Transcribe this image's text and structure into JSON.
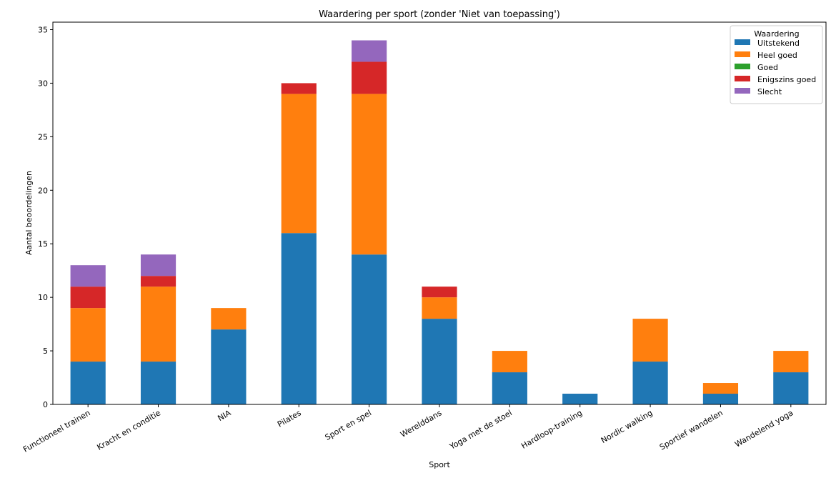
{
  "chart_data": {
    "type": "bar",
    "stacked": true,
    "title": "Waardering per sport (zonder 'Niet van toepassing')",
    "xlabel": "Sport",
    "ylabel": "Aantal beoordelingen",
    "ylim": [
      0,
      35.7
    ],
    "yticks": [
      0,
      5,
      10,
      15,
      20,
      25,
      30,
      35
    ],
    "grid": false,
    "legend_title": "Waardering",
    "legend_position": "top-right",
    "categories": [
      "Functioneel trainen",
      "Kracht en conditie",
      "NIA",
      "Pilates",
      "Sport en spel",
      "Werelddans",
      "Yoga met de stoel",
      "Hardloop-training",
      "Nordic walking",
      "Sportief wandelen",
      "Wandelend yoga"
    ],
    "series": [
      {
        "name": "Uitstekend",
        "color": "#1f77b4",
        "values": [
          4,
          4,
          7,
          16,
          14,
          8,
          3,
          1,
          4,
          1,
          3
        ]
      },
      {
        "name": "Heel goed",
        "color": "#ff7f0e",
        "values": [
          5,
          7,
          2,
          13,
          15,
          2,
          2,
          0,
          4,
          1,
          2
        ]
      },
      {
        "name": "Goed",
        "color": "#2ca02c",
        "values": [
          0,
          0,
          0,
          0,
          0,
          0,
          0,
          0,
          0,
          0,
          0
        ]
      },
      {
        "name": "Enigszins goed",
        "color": "#d62728",
        "values": [
          2,
          1,
          0,
          1,
          3,
          1,
          0,
          0,
          0,
          0,
          0
        ]
      },
      {
        "name": "Slecht",
        "color": "#9467bd",
        "values": [
          2,
          2,
          0,
          0,
          2,
          0,
          0,
          0,
          0,
          0,
          0
        ]
      }
    ]
  }
}
